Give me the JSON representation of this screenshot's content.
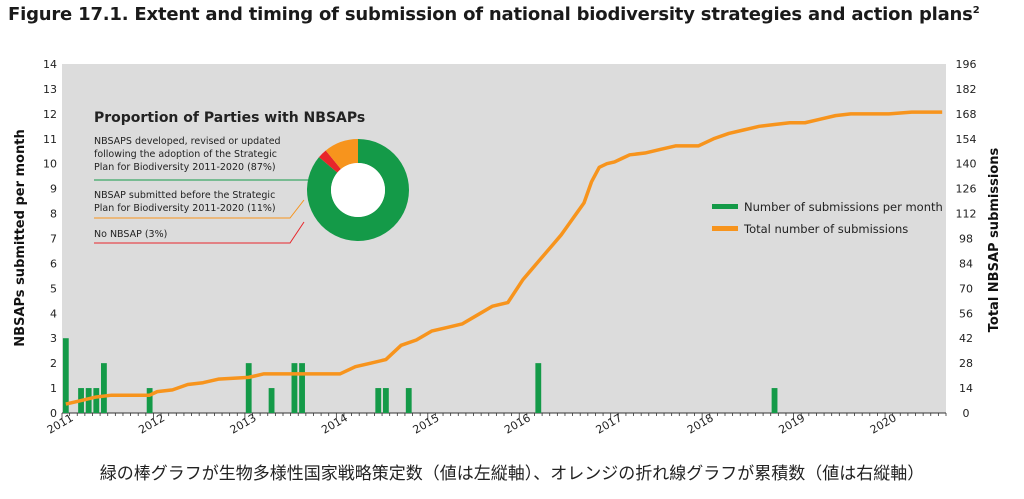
{
  "figure_title": "Figure 17.1. Extent and timing of submission of national biodiversity strategies and action plans",
  "figure_title_sup": "2",
  "caption": "緑の棒グラフが生物多様性国家戦略策定数（値は左縦軸）、オレンジの折れ線グラフが累積数（値は右縦軸）",
  "colors": {
    "bar": "#149a48",
    "line": "#f7941d",
    "no_nbsap": "#e8262b",
    "plot_bg": "#dcdcdc"
  },
  "chart_data": {
    "type": "bar",
    "ylabel": "NBSAPs submitted per month",
    "y2label": "Total NBSAP  submissions",
    "ylim": [
      0,
      14
    ],
    "y2lim": [
      0,
      196
    ],
    "yticks": [
      0,
      1,
      2,
      3,
      4,
      5,
      6,
      7,
      8,
      9,
      10,
      11,
      12,
      13,
      14
    ],
    "y2ticks": [
      0,
      14,
      28,
      42,
      56,
      70,
      84,
      98,
      112,
      126,
      140,
      154,
      168,
      182,
      196
    ],
    "xticks": [
      "2011",
      "2012",
      "2013",
      "2014",
      "2015",
      "2016",
      "2017",
      "2018",
      "2019",
      "2020"
    ],
    "grid": false,
    "legend_position": "right",
    "series": [
      {
        "name": "Number of submissions per month",
        "type": "bar",
        "axis": "left",
        "start": "2011-01",
        "values": [
          3,
          0,
          1,
          1,
          1,
          2,
          0,
          0,
          0,
          0,
          0,
          1,
          0,
          0,
          0,
          0,
          0,
          0,
          0,
          0,
          0,
          0,
          0,
          0,
          2,
          0,
          0,
          1,
          0,
          0,
          2,
          2,
          0,
          0,
          0,
          0,
          0,
          0,
          0,
          0,
          0,
          1,
          1,
          0,
          0,
          1,
          0,
          0,
          0,
          0,
          0,
          0,
          0,
          0,
          0,
          0,
          0,
          0,
          0,
          0,
          0,
          0,
          2,
          0,
          0,
          0,
          0,
          0,
          0,
          0,
          0,
          0,
          0,
          0,
          0,
          0,
          0,
          0,
          0,
          0,
          0,
          0,
          0,
          0,
          0,
          0,
          0,
          0,
          0,
          0,
          0,
          0,
          0,
          1,
          0,
          0,
          0,
          0,
          0,
          0,
          0,
          0,
          0,
          0,
          0,
          0,
          0,
          0,
          0,
          0,
          0,
          0,
          0,
          0,
          0,
          0,
          0,
          0,
          0,
          0,
          0,
          0,
          0,
          0,
          0,
          0,
          0,
          0,
          0,
          0,
          0,
          0,
          0,
          0,
          0,
          0,
          0,
          0,
          0,
          0,
          0,
          0,
          0,
          0,
          0,
          0,
          0,
          0,
          0,
          0,
          0,
          0,
          0,
          0,
          0,
          0,
          0,
          0,
          0,
          0,
          0,
          0,
          0,
          0,
          0,
          0,
          0,
          0,
          0,
          0,
          0,
          0,
          0,
          0,
          0,
          0,
          0,
          0,
          0,
          0,
          0,
          0,
          0,
          0,
          0,
          0,
          0,
          0,
          0,
          0,
          0,
          0,
          0,
          0,
          0,
          0,
          0,
          0,
          0,
          0,
          0,
          0,
          0,
          0,
          0,
          0,
          0,
          0,
          0,
          0,
          0,
          0,
          0,
          0,
          0,
          0,
          0,
          0,
          0,
          0,
          0,
          0,
          0,
          0,
          0,
          0,
          0,
          0,
          0,
          0,
          0,
          0,
          0,
          0,
          0,
          0,
          0,
          0,
          0,
          0
        ]
      },
      {
        "name": "Total number of submissions",
        "type": "line",
        "axis": "right",
        "x": [
          "2011-01",
          "2011-03",
          "2011-05",
          "2011-07",
          "2011-12",
          "2012-01",
          "2012-03",
          "2012-05",
          "2012-07",
          "2012-09",
          "2013-01",
          "2013-03",
          "2013-05",
          "2013-09",
          "2014-01",
          "2014-03",
          "2014-05",
          "2014-07",
          "2014-09",
          "2014-11",
          "2015-01",
          "2015-03",
          "2015-05",
          "2015-07",
          "2015-09",
          "2015-11",
          "2016-01",
          "2016-02",
          "2016-03",
          "2016-04",
          "2016-05",
          "2016-06",
          "2016-07",
          "2016-08",
          "2016-09",
          "2016-10",
          "2016-11",
          "2016-12",
          "2017-01",
          "2017-02",
          "2017-03",
          "2017-05",
          "2017-07",
          "2017-09",
          "2017-12",
          "2018-02",
          "2018-04",
          "2018-06",
          "2018-08",
          "2018-10",
          "2018-12",
          "2019-02",
          "2019-04",
          "2019-06",
          "2019-08",
          "2019-10",
          "2019-12",
          "2020-01",
          "2020-04",
          "2020-08"
        ],
        "values": [
          5,
          7,
          9,
          10,
          10,
          12,
          13,
          16,
          17,
          19,
          20,
          22,
          22,
          22,
          22,
          26,
          28,
          30,
          38,
          41,
          46,
          48,
          50,
          55,
          60,
          62,
          75,
          80,
          85,
          90,
          95,
          100,
          106,
          112,
          118,
          130,
          138,
          140,
          141,
          143,
          145,
          146,
          148,
          150,
          150,
          154,
          157,
          159,
          161,
          162,
          163,
          163,
          165,
          167,
          168,
          168,
          168,
          168,
          169,
          169
        ]
      }
    ],
    "inset": {
      "type": "pie",
      "title": "Proportion of Parties with NBSAPs",
      "slices": [
        {
          "label": "NBSAPS developed, revised or updated following the adoption of the Strategic Plan for Biodiversity 2011-2020 (87%)",
          "value": 87
        },
        {
          "label": "NBSAP submitted before the Strategic Plan for Biodiversity 2011-2020 (11%)",
          "value": 11
        },
        {
          "label": "No NBSAP (3%)",
          "value": 3
        }
      ]
    }
  }
}
